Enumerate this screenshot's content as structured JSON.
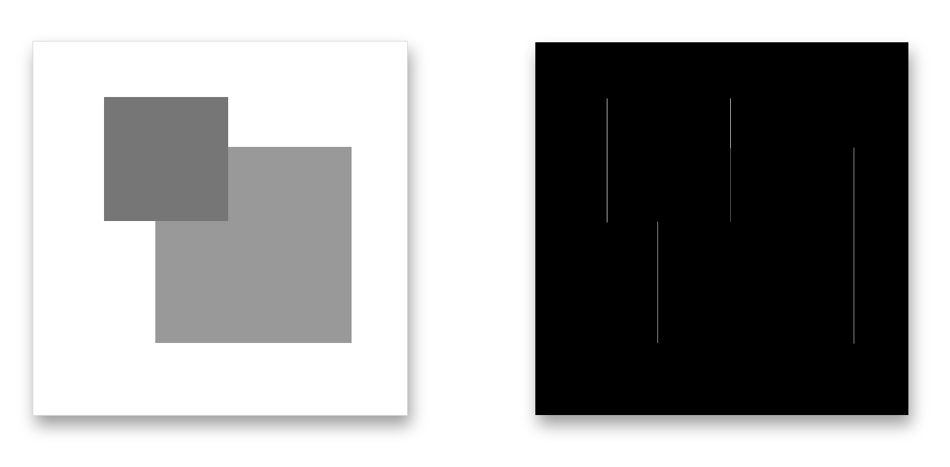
{
  "colors": {
    "background": "#ffffff",
    "left_panel_fill": "#ffffff",
    "right_panel_fill": "#000000",
    "square_front_fill": "#767676",
    "square_back_fill": "#999999"
  },
  "icons": {
    "left_panel": "overlapping-squares-image",
    "right_panel": "edge-detection-image"
  }
}
